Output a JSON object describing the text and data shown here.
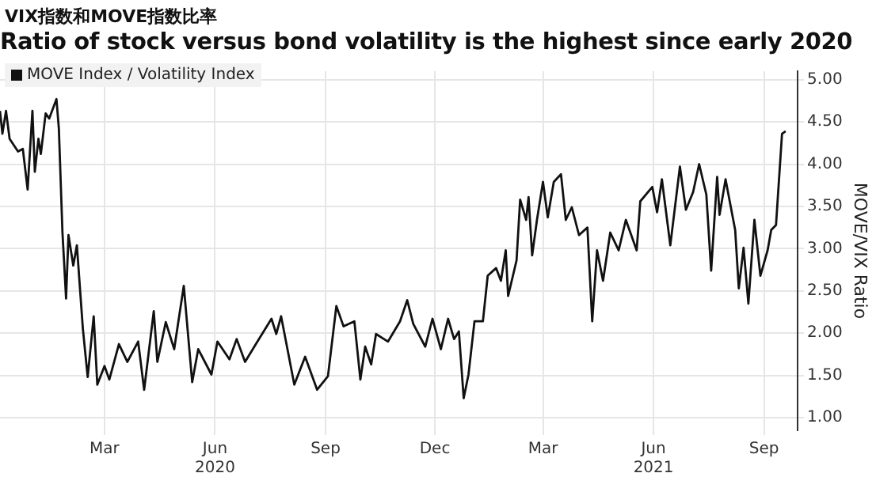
{
  "chart_data": {
    "type": "line",
    "title": "VIX指数和MOVE指数比率",
    "subtitle": "Ratio of stock versus bond volatility is the highest since early 2020",
    "ylabel": "MOVE/VIX Ratio",
    "legend": "top left",
    "grid": true,
    "marker": "none",
    "line_style": "solid",
    "xlim": [
      "2019-12-05",
      "2021-09-29"
    ],
    "ylim": [
      0.85,
      5.1
    ],
    "xticks": [
      {
        "value": "2020-03-01",
        "label": "Mar"
      },
      {
        "value": "2020-06-01",
        "label": "Jun\n2020"
      },
      {
        "value": "2020-09-01",
        "label": "Sep"
      },
      {
        "value": "2020-12-01",
        "label": "Dec"
      },
      {
        "value": "2021-03-01",
        "label": "Mar"
      },
      {
        "value": "2021-06-01",
        "label": "Jun\n2021"
      },
      {
        "value": "2021-09-01",
        "label": "Sep"
      }
    ],
    "yticks": [
      {
        "value": 1,
        "label": "1.00"
      },
      {
        "value": 1.5,
        "label": "1.50"
      },
      {
        "value": 2,
        "label": "2.00"
      },
      {
        "value": 2.5,
        "label": "2.50"
      },
      {
        "value": 3,
        "label": "3.00"
      },
      {
        "value": 3.5,
        "label": "3.50"
      },
      {
        "value": 4,
        "label": "4.00"
      },
      {
        "value": 4.5,
        "label": "4.50"
      },
      {
        "value": 5,
        "label": "5.00"
      }
    ],
    "x": [
      "2019-12-05",
      "2019-12-07",
      "2019-12-10",
      "2019-12-13",
      "2019-12-20",
      "2019-12-24",
      "2019-12-28",
      "2020-01-01",
      "2020-01-03",
      "2020-01-06",
      "2020-01-08",
      "2020-01-12",
      "2020-01-15",
      "2020-01-21",
      "2020-01-23",
      "2020-01-26",
      "2020-01-29",
      "2020-01-31",
      "2020-02-04",
      "2020-02-07",
      "2020-02-12",
      "2020-02-16",
      "2020-02-21",
      "2020-02-24",
      "2020-03-01",
      "2020-03-05",
      "2020-03-13",
      "2020-03-20",
      "2020-03-29",
      "2020-04-03",
      "2020-04-11",
      "2020-04-14",
      "2020-04-21",
      "2020-04-28",
      "2020-05-06",
      "2020-05-13",
      "2020-05-18",
      "2020-05-29",
      "2020-06-03",
      "2020-06-13",
      "2020-06-19",
      "2020-06-26",
      "2020-07-05",
      "2020-07-18",
      "2020-07-22",
      "2020-07-26",
      "2020-08-06",
      "2020-08-15",
      "2020-08-25",
      "2020-09-03",
      "2020-09-10",
      "2020-09-16",
      "2020-09-25",
      "2020-09-30",
      "2020-10-04",
      "2020-10-09",
      "2020-10-13",
      "2020-10-23",
      "2020-11-02",
      "2020-11-08",
      "2020-11-13",
      "2020-11-23",
      "2020-11-29",
      "2020-12-06",
      "2020-12-12",
      "2020-12-17",
      "2020-12-21",
      "2020-12-25",
      "2020-12-29",
      "2021-01-03",
      "2021-01-10",
      "2021-01-14",
      "2021-01-21",
      "2021-01-25",
      "2021-01-29",
      "2021-01-31",
      "2021-02-07",
      "2021-02-10",
      "2021-02-15",
      "2021-02-17",
      "2021-02-20",
      "2021-02-24",
      "2021-03-01",
      "2021-03-05",
      "2021-03-10",
      "2021-03-16",
      "2021-03-20",
      "2021-03-25",
      "2021-03-31",
      "2021-04-07",
      "2021-04-11",
      "2021-04-15",
      "2021-04-20",
      "2021-04-26",
      "2021-05-03",
      "2021-05-09",
      "2021-05-18",
      "2021-05-21",
      "2021-05-31",
      "2021-06-04",
      "2021-06-08",
      "2021-06-15",
      "2021-06-23",
      "2021-06-28",
      "2021-07-04",
      "2021-07-09",
      "2021-07-15",
      "2021-07-19",
      "2021-07-24",
      "2021-07-26",
      "2021-07-31",
      "2021-08-08",
      "2021-08-11",
      "2021-08-15",
      "2021-08-19",
      "2021-08-24",
      "2021-08-29",
      "2021-09-04",
      "2021-09-07",
      "2021-09-11",
      "2021-09-16",
      "2021-09-19"
    ],
    "series": [
      {
        "name": "MOVE Index / Volatility Index",
        "color": "#111111",
        "values": [
          4.63,
          4.36,
          4.63,
          4.3,
          4.15,
          4.18,
          3.7,
          4.63,
          3.91,
          4.3,
          4.12,
          4.6,
          4.54,
          4.77,
          4.42,
          3.19,
          2.41,
          3.16,
          2.8,
          3.04,
          2.05,
          1.48,
          2.2,
          1.39,
          1.61,
          1.45,
          1.87,
          1.66,
          1.9,
          1.33,
          2.26,
          1.66,
          2.13,
          1.81,
          2.56,
          1.42,
          1.81,
          1.51,
          1.9,
          1.69,
          1.93,
          1.66,
          1.87,
          2.17,
          1.99,
          2.2,
          1.39,
          1.72,
          1.33,
          1.49,
          2.32,
          2.08,
          2.14,
          1.45,
          1.84,
          1.63,
          1.99,
          1.9,
          2.14,
          2.39,
          2.11,
          1.84,
          2.17,
          1.81,
          2.17,
          1.93,
          2.02,
          1.23,
          1.51,
          2.14,
          2.14,
          2.68,
          2.77,
          2.62,
          2.98,
          2.44,
          2.86,
          3.58,
          3.34,
          3.61,
          2.92,
          3.34,
          3.79,
          3.37,
          3.79,
          3.88,
          3.34,
          3.49,
          3.16,
          3.25,
          2.14,
          2.98,
          2.62,
          3.19,
          2.98,
          3.34,
          2.98,
          3.56,
          3.73,
          3.43,
          3.82,
          3.04,
          3.97,
          3.46,
          3.67,
          4.0,
          3.64,
          2.74,
          3.85,
          3.4,
          3.82,
          3.22,
          2.53,
          3.01,
          2.35,
          3.34,
          2.68,
          2.98,
          3.22,
          3.28,
          4.36,
          4.39
        ]
      }
    ]
  }
}
